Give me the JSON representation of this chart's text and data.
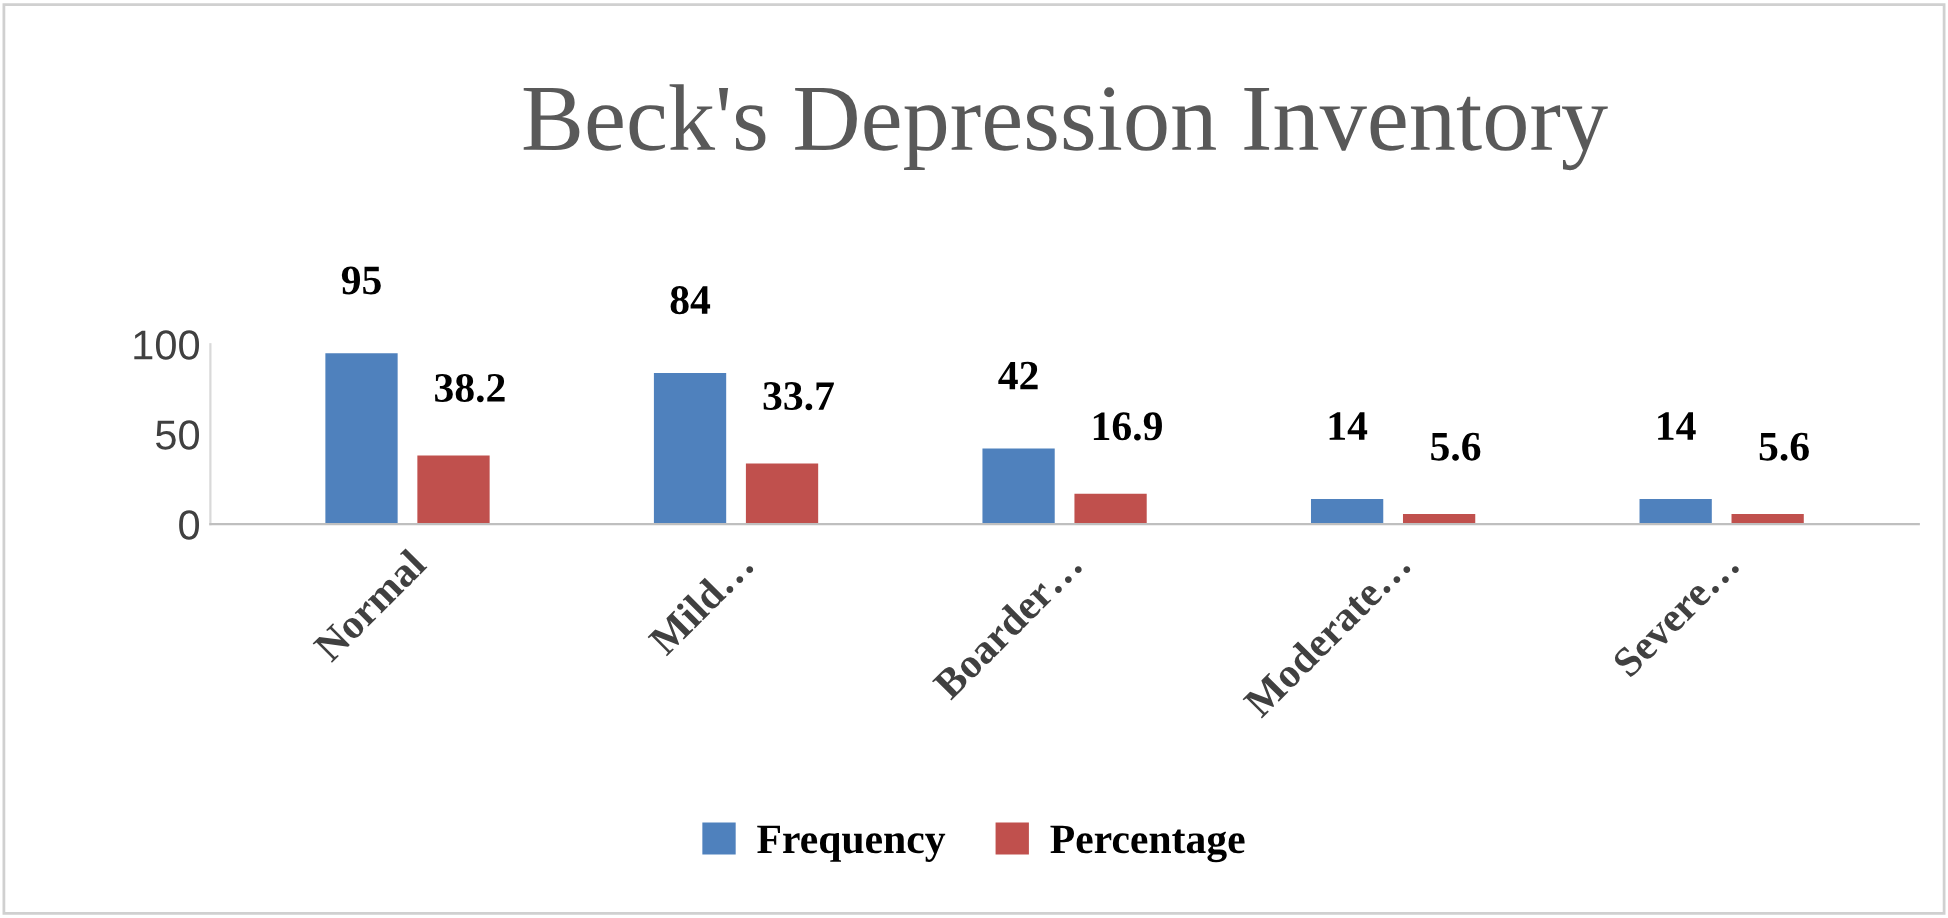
{
  "chart_data": {
    "type": "bar",
    "title": "Beck's Depression Inventory",
    "categories": [
      "Normal",
      "Mild…",
      "Boarder…",
      "Moderate…",
      "Severe…"
    ],
    "series": [
      {
        "name": "Frequency",
        "color": "#4f81bd",
        "values": [
          95,
          84,
          42,
          14,
          14
        ]
      },
      {
        "name": "Percentage",
        "color": "#c0504d",
        "values": [
          38.2,
          33.7,
          16.9,
          5.6,
          5.6
        ]
      }
    ],
    "ylim": [
      0,
      100
    ],
    "yticks": [
      0,
      50,
      100
    ],
    "grid": false,
    "legend": "bottom",
    "data_labels": true
  }
}
